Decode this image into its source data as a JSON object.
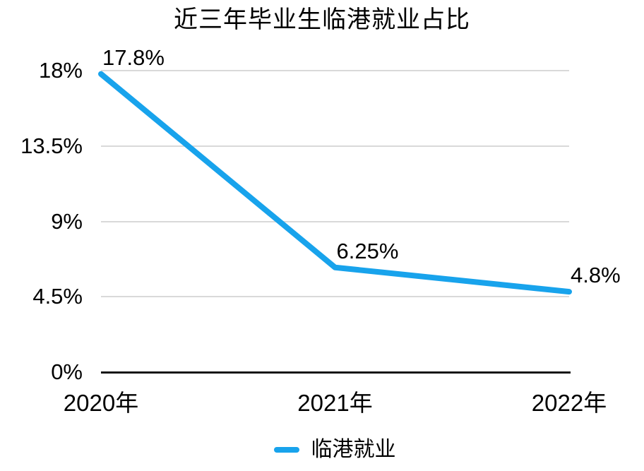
{
  "chart_data": {
    "type": "line",
    "title": "近三年毕业生临港就业占比",
    "categories": [
      "2020年",
      "2021年",
      "2022年"
    ],
    "series": [
      {
        "name": "临港就业",
        "values": [
          17.8,
          6.25,
          4.8
        ]
      }
    ],
    "data_labels": [
      "17.8%",
      "6.25%",
      "4.8%"
    ],
    "y_axis": {
      "ticks": [
        {
          "label": "18%",
          "value": 18
        },
        {
          "label": "13.5%",
          "value": 13.5
        },
        {
          "label": "9%",
          "value": 9
        },
        {
          "label": "4.5%",
          "value": 4.5
        },
        {
          "label": "0%",
          "value": 0
        }
      ],
      "ylim": [
        0,
        18
      ]
    },
    "xlabel": "",
    "ylabel": "",
    "grid": "horizontal",
    "legend": {
      "position": "bottom",
      "items": [
        {
          "label": "临港就业",
          "color": "#18a3ec"
        }
      ]
    },
    "colors": {
      "line": "#18a3ec",
      "gridline": "#d9d9d9",
      "axis": "#141414",
      "text": "#000000",
      "background": "#ffffff"
    }
  }
}
